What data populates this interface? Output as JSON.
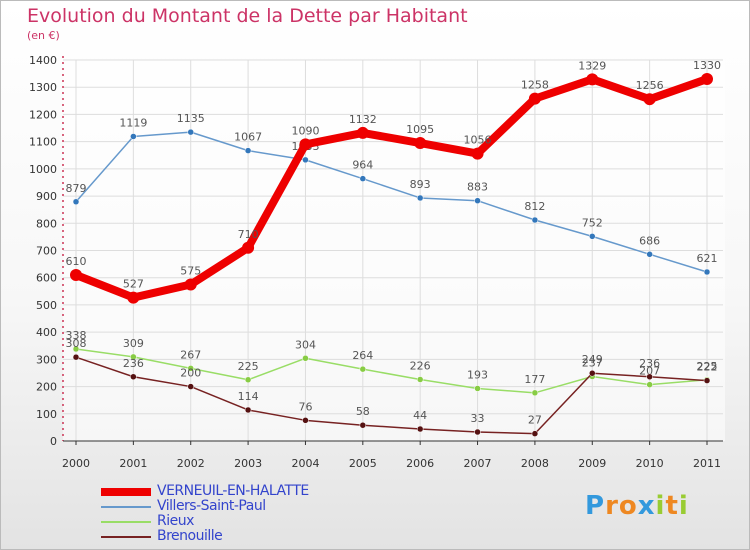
{
  "header": {
    "title": "Evolution du Montant de la Dette par Habitant",
    "subtitle": "(en €)"
  },
  "logo": {
    "letters": [
      "P",
      "r",
      "o",
      "x",
      "i",
      "t",
      "i"
    ],
    "colors": [
      "#3399dd",
      "#ee8822",
      "#ee8822",
      "#3399dd",
      "#99cc33",
      "#ee8822",
      "#99cc33"
    ]
  },
  "chart_data": {
    "type": "line",
    "title": "Evolution du Montant de la Dette par Habitant",
    "subtitle": "(en €)",
    "xlabel": "",
    "ylabel": "",
    "x": [
      "2000",
      "2001",
      "2002",
      "2003",
      "2004",
      "2005",
      "2006",
      "2007",
      "2008",
      "2009",
      "2010",
      "2011"
    ],
    "ylim": [
      0,
      1400
    ],
    "yticks": [
      0,
      100,
      200,
      300,
      400,
      500,
      600,
      700,
      800,
      900,
      1000,
      1100,
      1200,
      1300,
      1400
    ],
    "grid": true,
    "legend_position": "bottom-left",
    "series": [
      {
        "name": "VERNEUIL-EN-HALATTE",
        "color": "#ee0000",
        "width": 8,
        "marker": 6,
        "values": [
          610,
          527,
          575,
          710,
          1090,
          1132,
          1095,
          1056,
          1258,
          1329,
          1256,
          1330
        ]
      },
      {
        "name": "Villers-Saint-Paul",
        "color": "#6699cc",
        "width": 1.5,
        "marker": 3,
        "values": [
          879,
          1119,
          1135,
          1067,
          1033,
          964,
          893,
          883,
          812,
          752,
          686,
          621
        ]
      },
      {
        "name": "Rieux",
        "color": "#99dd66",
        "width": 1.5,
        "marker": 3,
        "values": [
          338,
          309,
          267,
          225,
          304,
          264,
          226,
          193,
          177,
          237,
          207,
          225
        ]
      },
      {
        "name": "Brenouille",
        "color": "#772222",
        "width": 1.5,
        "marker": 3,
        "values": [
          308,
          236,
          200,
          114,
          76,
          58,
          44,
          33,
          27,
          249,
          236,
          222
        ]
      }
    ]
  }
}
